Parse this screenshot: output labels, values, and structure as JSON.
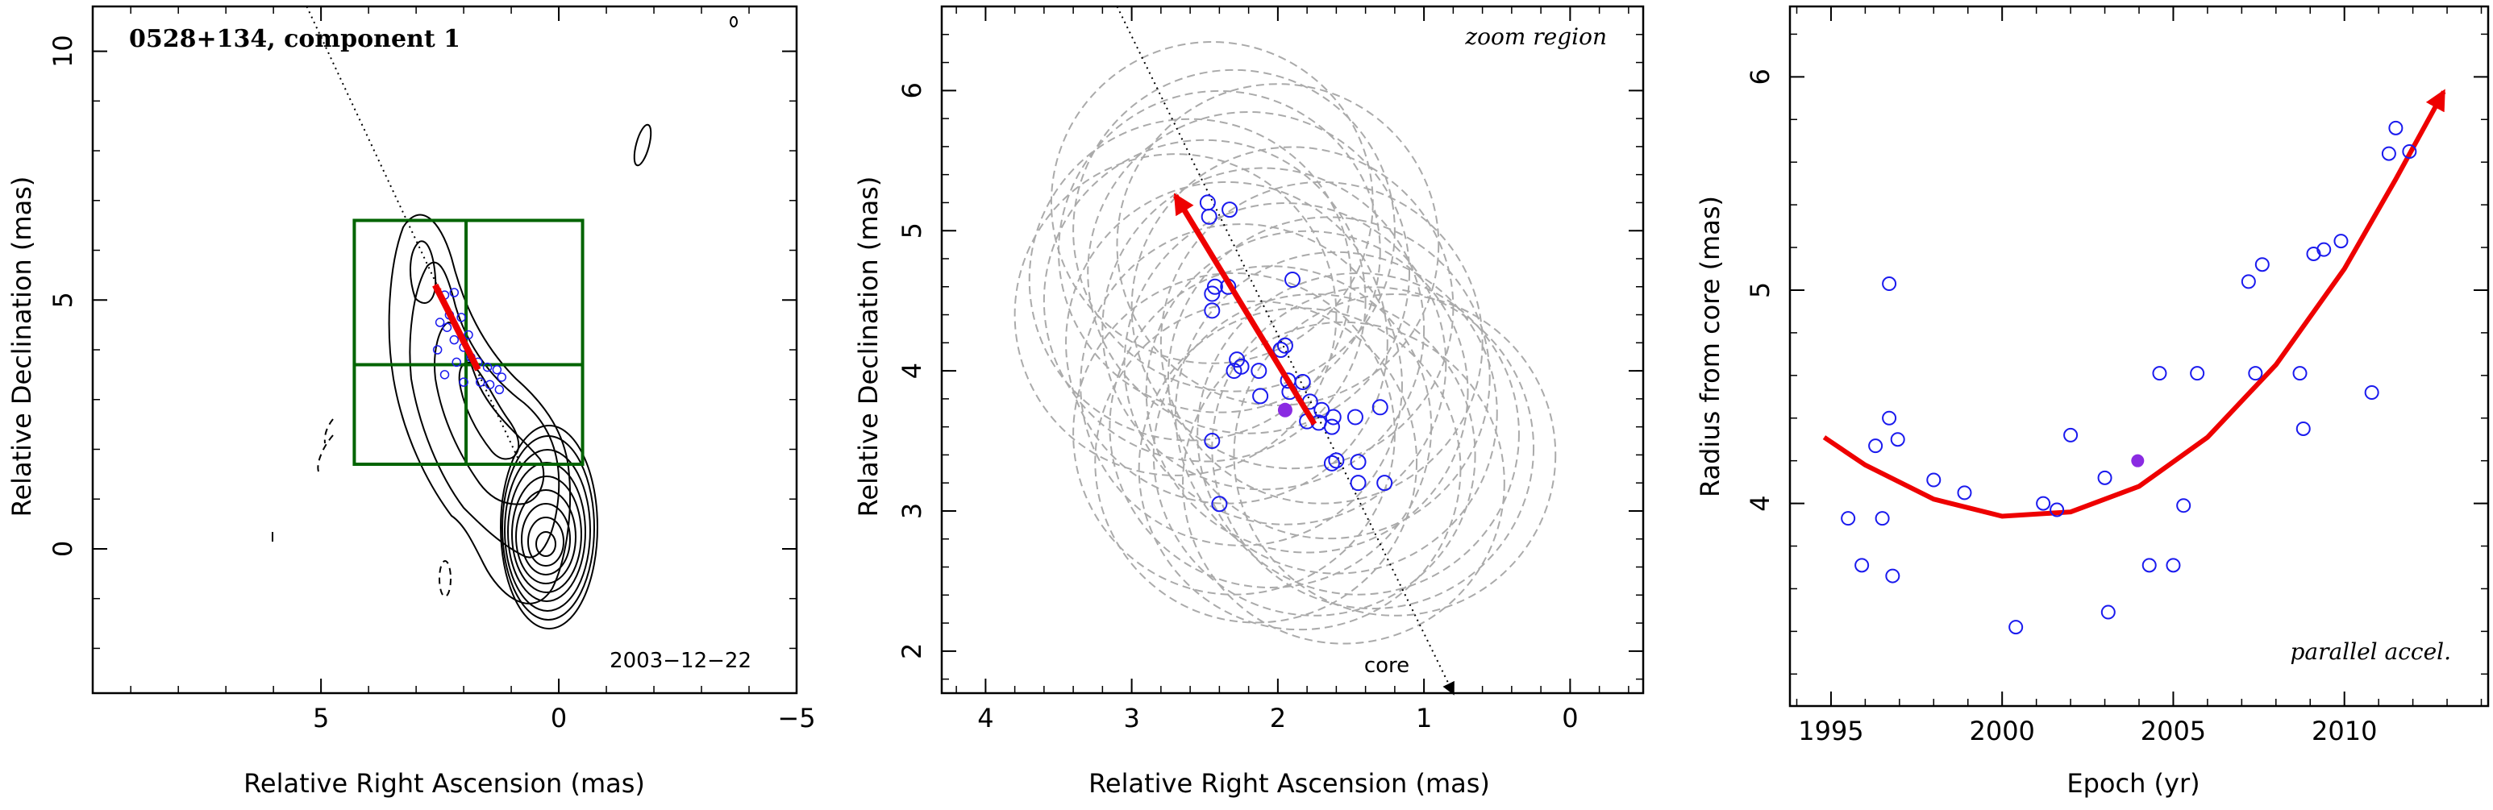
{
  "chart_data": [
    {
      "type": "scatter",
      "title": "0528+134, component 1",
      "annotation": "2003−12−22",
      "xlabel": "Relative Right Ascension (mas)",
      "ylabel": "Relative Declination (mas)",
      "xlim": [
        9.8,
        -5.0
      ],
      "ylim": [
        -2.9,
        10.9
      ],
      "xticks": [
        5,
        0,
        -5
      ],
      "yticks": [
        0,
        5,
        10
      ],
      "xtick_labels": [
        "5",
        "0",
        "−5"
      ],
      "ytick_labels": [
        "0",
        "5",
        "10"
      ],
      "colors": {
        "points": "#1a1aee",
        "arrow": "#ee0000",
        "box": "#006400",
        "contour": "#000000"
      },
      "arrow": {
        "from": [
          1.7,
          3.6
        ],
        "to": [
          2.6,
          5.3
        ]
      },
      "zoom_box": {
        "ra": [
          4.3,
          -0.5
        ],
        "dec": [
          1.7,
          6.6
        ],
        "cross_ra": 1.95,
        "cross_dec": 3.7
      },
      "points": [
        [
          2.4,
          5.1
        ],
        [
          2.2,
          5.15
        ],
        [
          2.3,
          4.7
        ],
        [
          2.05,
          4.65
        ],
        [
          2.5,
          4.55
        ],
        [
          2.35,
          4.45
        ],
        [
          2.2,
          4.2
        ],
        [
          2.0,
          4.05
        ],
        [
          1.85,
          3.85
        ],
        [
          1.7,
          3.75
        ],
        [
          1.5,
          3.65
        ],
        [
          1.3,
          3.6
        ],
        [
          1.2,
          3.45
        ],
        [
          1.45,
          3.3
        ],
        [
          1.65,
          3.35
        ],
        [
          2.4,
          3.5
        ],
        [
          2.55,
          4.0
        ],
        [
          1.9,
          4.3
        ],
        [
          2.15,
          3.75
        ],
        [
          2.0,
          3.35
        ],
        [
          1.25,
          3.2
        ]
      ]
    },
    {
      "type": "scatter",
      "title": "zoom region",
      "annotation": "core",
      "xlabel": "Relative Right Ascension (mas)",
      "ylabel": "Relative Declination (mas)",
      "xlim": [
        4.3,
        -0.5
      ],
      "ylim": [
        1.7,
        6.6
      ],
      "xticks": [
        4,
        3,
        2,
        1,
        0
      ],
      "yticks": [
        2,
        3,
        4,
        5,
        6
      ],
      "xtick_labels": [
        "4",
        "3",
        "2",
        "1",
        "0"
      ],
      "ytick_labels": [
        "2",
        "3",
        "4",
        "5",
        "6"
      ],
      "colors": {
        "points": "#1a1aee",
        "mean": "#8a2be2",
        "arrow": "#ee0000",
        "ellipses": "#aaaaaa"
      },
      "arrow": {
        "from": [
          1.75,
          3.62
        ],
        "to": [
          2.7,
          5.25
        ]
      },
      "mean_point": [
        1.95,
        3.72
      ],
      "trajectory_line": {
        "from": [
          3.1,
          6.6
        ],
        "to": [
          0.8,
          1.7
        ]
      },
      "points": [
        [
          2.48,
          5.2
        ],
        [
          2.33,
          5.15
        ],
        [
          2.47,
          5.1
        ],
        [
          2.43,
          4.6
        ],
        [
          2.34,
          4.6
        ],
        [
          2.45,
          4.55
        ],
        [
          2.45,
          4.43
        ],
        [
          1.9,
          4.65
        ],
        [
          1.95,
          4.18
        ],
        [
          1.98,
          4.15
        ],
        [
          2.28,
          4.08
        ],
        [
          2.25,
          4.03
        ],
        [
          2.3,
          4.0
        ],
        [
          2.13,
          4.0
        ],
        [
          1.93,
          3.93
        ],
        [
          1.83,
          3.92
        ],
        [
          1.92,
          3.85
        ],
        [
          2.12,
          3.82
        ],
        [
          1.78,
          3.78
        ],
        [
          1.7,
          3.72
        ],
        [
          1.3,
          3.74
        ],
        [
          1.47,
          3.67
        ],
        [
          1.62,
          3.67
        ],
        [
          1.72,
          3.63
        ],
        [
          1.63,
          3.6
        ],
        [
          1.8,
          3.64
        ],
        [
          2.45,
          3.5
        ],
        [
          1.6,
          3.36
        ],
        [
          1.63,
          3.34
        ],
        [
          1.45,
          3.35
        ],
        [
          2.4,
          3.05
        ],
        [
          1.45,
          3.2
        ],
        [
          1.27,
          3.2
        ]
      ],
      "ellipses": [
        [
          2.3,
          5.0
        ],
        [
          2.2,
          4.7
        ],
        [
          2.5,
          4.5
        ],
        [
          2.1,
          4.3
        ],
        [
          2.35,
          4.2
        ],
        [
          1.95,
          4.05
        ],
        [
          2.25,
          3.9
        ],
        [
          1.8,
          3.85
        ],
        [
          1.6,
          3.7
        ],
        [
          2.05,
          3.6
        ],
        [
          1.45,
          3.55
        ],
        [
          1.75,
          3.4
        ],
        [
          2.4,
          4.85
        ],
        [
          2.6,
          4.65
        ],
        [
          1.9,
          4.45
        ],
        [
          1.65,
          3.95
        ],
        [
          1.35,
          3.45
        ],
        [
          2.15,
          3.35
        ],
        [
          1.55,
          3.2
        ],
        [
          2.45,
          5.2
        ],
        [
          2.0,
          4.9
        ],
        [
          2.7,
          4.4
        ],
        [
          1.85,
          3.3
        ],
        [
          1.2,
          3.4
        ],
        [
          2.3,
          3.55
        ],
        [
          1.7,
          4.2
        ]
      ]
    },
    {
      "type": "scatter",
      "title": "parallel accel.",
      "xlabel": "Epoch (yr)",
      "ylabel": "Radius from core (mas)",
      "xlim": [
        1993.8,
        2014.2
      ],
      "ylim": [
        3.05,
        6.33
      ],
      "xticks": [
        1995,
        2000,
        2005,
        2010
      ],
      "yticks": [
        4,
        5,
        6
      ],
      "xtick_labels": [
        "1995",
        "2000",
        "2005",
        "2010"
      ],
      "ytick_labels": [
        "4",
        "5",
        "6"
      ],
      "colors": {
        "points": "#1a1aee",
        "mean": "#8a2be2",
        "fit": "#ee0000"
      },
      "mean_point": [
        2003.96,
        4.2
      ],
      "fit_curve": [
        [
          1994.8,
          4.31
        ],
        [
          1996,
          4.18
        ],
        [
          1998,
          4.02
        ],
        [
          2000,
          3.94
        ],
        [
          2002,
          3.96
        ],
        [
          2004,
          4.08
        ],
        [
          2006,
          4.31
        ],
        [
          2008,
          4.65
        ],
        [
          2010,
          5.1
        ],
        [
          2011.5,
          5.52
        ],
        [
          2012.9,
          5.93
        ]
      ],
      "points": [
        [
          1995.5,
          3.93
        ],
        [
          1995.9,
          3.71
        ],
        [
          1996.3,
          4.27
        ],
        [
          1996.5,
          3.93
        ],
        [
          1996.7,
          5.03
        ],
        [
          1996.7,
          4.4
        ],
        [
          1996.8,
          3.66
        ],
        [
          1996.95,
          4.3
        ],
        [
          1998.0,
          4.11
        ],
        [
          1998.9,
          4.05
        ],
        [
          2000.4,
          3.42
        ],
        [
          2001.2,
          4.0
        ],
        [
          2001.6,
          3.97
        ],
        [
          2002.0,
          4.32
        ],
        [
          2003.0,
          4.12
        ],
        [
          2003.1,
          3.49
        ],
        [
          2004.3,
          3.71
        ],
        [
          2004.6,
          4.61
        ],
        [
          2005.0,
          3.71
        ],
        [
          2005.3,
          3.99
        ],
        [
          2005.7,
          4.61
        ],
        [
          2007.2,
          5.04
        ],
        [
          2007.4,
          4.61
        ],
        [
          2007.6,
          5.12
        ],
        [
          2008.7,
          4.61
        ],
        [
          2008.8,
          4.35
        ],
        [
          2009.1,
          5.17
        ],
        [
          2009.4,
          5.19
        ],
        [
          2009.9,
          5.23
        ],
        [
          2010.8,
          4.52
        ],
        [
          2011.3,
          5.64
        ],
        [
          2011.5,
          5.76
        ],
        [
          2011.9,
          5.65
        ]
      ]
    }
  ]
}
